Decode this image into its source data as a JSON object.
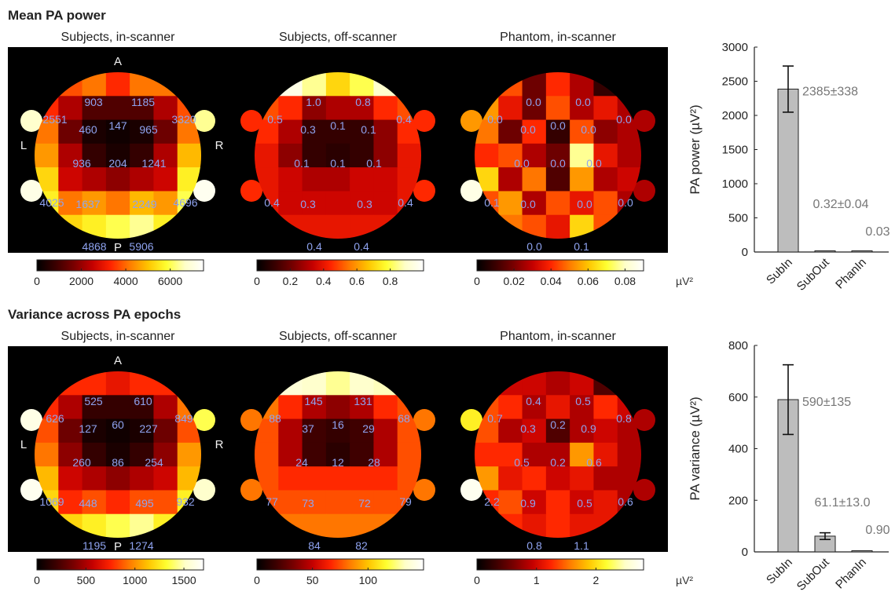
{
  "colormap": [
    "#000000",
    "#3a0000",
    "#7a0000",
    "#c40000",
    "#ff2400",
    "#ff7a00",
    "#ffc400",
    "#ffff30",
    "#ffffc8",
    "#ffffff"
  ],
  "orientation_labels": {
    "anterior": "A",
    "posterior": "P",
    "left": "L",
    "right": "R"
  },
  "unit_label": "µV²",
  "sections": [
    {
      "title": "Mean PA power",
      "panels": [
        {
          "title": "Subjects, in-scanner",
          "cmax": 7500,
          "show_orientation": true,
          "colorbar_ticks": [
            "0",
            "2000",
            "4000",
            "6000"
          ],
          "colorbar_tick_values": [
            0,
            2000,
            4000,
            6000
          ],
          "values": [
            "903",
            "1185",
            "2551",
            "460",
            "147",
            "965",
            "3320",
            "936",
            "204",
            "1241",
            "4025",
            "4696",
            "1637",
            "2249",
            "4868",
            "5906"
          ],
          "ear_levels": [
            0.9,
            0.85,
            0.95,
            0.97
          ],
          "cells": [
            [
              0.35,
              0.5,
              0.55,
              0.45,
              0.55,
              0.55,
              0.45
            ],
            [
              0.45,
              0.3,
              0.15,
              0.15,
              0.15,
              0.3,
              0.5
            ],
            [
              0.55,
              0.2,
              0.05,
              0.03,
              0.05,
              0.2,
              0.55
            ],
            [
              0.6,
              0.3,
              0.1,
              0.05,
              0.1,
              0.3,
              0.65
            ],
            [
              0.7,
              0.35,
              0.3,
              0.25,
              0.3,
              0.35,
              0.75
            ],
            [
              0.75,
              0.55,
              0.6,
              0.55,
              0.65,
              0.6,
              0.8
            ],
            [
              0.8,
              0.7,
              0.75,
              0.8,
              0.85,
              0.75,
              0.85
            ]
          ]
        },
        {
          "title": "Subjects, off-scanner",
          "cmax": 1.0,
          "show_orientation": false,
          "colorbar_ticks": [
            "0",
            "0.2",
            "0.4",
            "0.6",
            "0.8"
          ],
          "colorbar_tick_values": [
            0,
            0.2,
            0.4,
            0.6,
            0.8
          ],
          "values": [
            "1.0",
            "0.8",
            "0.5",
            "0.3",
            "0.1",
            "0.1",
            "0.4",
            "0.1",
            "0.1",
            "0.1",
            "0.4",
            "0.4",
            "0.3",
            "0.3",
            "0.4",
            "0.4"
          ],
          "ear_levels": [
            0.45,
            0.45,
            0.45,
            0.45
          ],
          "cells": [
            [
              0.85,
              0.95,
              0.85,
              0.7,
              0.8,
              0.9,
              0.75
            ],
            [
              0.5,
              0.45,
              0.25,
              0.3,
              0.3,
              0.45,
              0.5
            ],
            [
              0.45,
              0.3,
              0.1,
              0.1,
              0.1,
              0.25,
              0.45
            ],
            [
              0.4,
              0.25,
              0.1,
              0.08,
              0.1,
              0.25,
              0.4
            ],
            [
              0.4,
              0.35,
              0.3,
              0.3,
              0.35,
              0.35,
              0.4
            ],
            [
              0.4,
              0.35,
              0.35,
              0.35,
              0.35,
              0.35,
              0.4
            ],
            [
              0.4,
              0.4,
              0.4,
              0.4,
              0.4,
              0.4,
              0.4
            ]
          ]
        },
        {
          "title": "Phantom, in-scanner",
          "cmax": 0.09,
          "show_orientation": false,
          "colorbar_ticks": [
            "0",
            "0.02",
            "0.04",
            "0.06",
            "0.08"
          ],
          "colorbar_tick_values": [
            0,
            0.02,
            0.04,
            0.06,
            0.08
          ],
          "values": [
            "0.0",
            "0.0",
            "0.0",
            "0.0",
            "0.0",
            "0.0",
            "0.0",
            "0.0",
            "0.0",
            "0.0",
            "0.1",
            "0.0",
            "0.0",
            "0.0",
            "0.0",
            "0.1"
          ],
          "ear_levels": [
            0.6,
            0.3,
            0.95,
            0.3
          ],
          "cells": [
            [
              0.3,
              0.5,
              0.2,
              0.45,
              0.3,
              0.1,
              0.3
            ],
            [
              0.6,
              0.4,
              0.2,
              0.5,
              0.3,
              0.4,
              0.3
            ],
            [
              0.55,
              0.2,
              0.45,
              0.1,
              0.5,
              0.25,
              0.3
            ],
            [
              0.45,
              0.5,
              0.3,
              0.2,
              0.85,
              0.4,
              0.3
            ],
            [
              0.7,
              0.3,
              0.55,
              0.15,
              0.6,
              0.3,
              0.35
            ],
            [
              0.5,
              0.6,
              0.3,
              0.5,
              0.4,
              0.5,
              0.3
            ],
            [
              0.6,
              0.55,
              0.5,
              0.4,
              0.7,
              0.5,
              0.4
            ]
          ]
        }
      ]
    },
    {
      "title": "Variance across PA epochs",
      "panels": [
        {
          "title": "Subjects, in-scanner",
          "cmax": 1700,
          "show_orientation": true,
          "colorbar_ticks": [
            "0",
            "500",
            "1000",
            "1500"
          ],
          "colorbar_tick_values": [
            0,
            500,
            1000,
            1500
          ],
          "values": [
            "525",
            "610",
            "626",
            "127",
            "60",
            "227",
            "849",
            "260",
            "86",
            "254",
            "1069",
            "932",
            "448",
            "495",
            "1195",
            "1274"
          ],
          "ear_levels": [
            0.95,
            0.8,
            0.97,
            0.9
          ],
          "cells": [
            [
              0.35,
              0.45,
              0.45,
              0.4,
              0.45,
              0.45,
              0.35
            ],
            [
              0.45,
              0.3,
              0.1,
              0.1,
              0.1,
              0.3,
              0.55
            ],
            [
              0.5,
              0.2,
              0.05,
              0.03,
              0.05,
              0.2,
              0.5
            ],
            [
              0.55,
              0.25,
              0.1,
              0.05,
              0.1,
              0.25,
              0.6
            ],
            [
              0.65,
              0.35,
              0.3,
              0.25,
              0.3,
              0.35,
              0.65
            ],
            [
              0.7,
              0.45,
              0.5,
              0.45,
              0.5,
              0.5,
              0.75
            ],
            [
              0.75,
              0.7,
              0.75,
              0.8,
              0.85,
              0.75,
              0.8
            ]
          ]
        },
        {
          "title": "Subjects, off-scanner",
          "cmax": 150,
          "show_orientation": false,
          "colorbar_ticks": [
            "0",
            "50",
            "100"
          ],
          "colorbar_tick_values": [
            0,
            50,
            100
          ],
          "values": [
            "145",
            "131",
            "88",
            "37",
            "16",
            "29",
            "68",
            "24",
            "12",
            "28",
            "77",
            "79",
            "73",
            "72",
            "84",
            "82"
          ],
          "ear_levels": [
            0.55,
            0.55,
            0.55,
            0.55
          ],
          "cells": [
            [
              0.8,
              0.92,
              0.9,
              0.85,
              0.9,
              0.88,
              0.75
            ],
            [
              0.55,
              0.45,
              0.3,
              0.25,
              0.3,
              0.45,
              0.5
            ],
            [
              0.5,
              0.3,
              0.12,
              0.1,
              0.12,
              0.3,
              0.5
            ],
            [
              0.5,
              0.3,
              0.12,
              0.08,
              0.12,
              0.3,
              0.5
            ],
            [
              0.5,
              0.45,
              0.45,
              0.45,
              0.45,
              0.45,
              0.5
            ],
            [
              0.5,
              0.5,
              0.5,
              0.5,
              0.5,
              0.5,
              0.5
            ],
            [
              0.55,
              0.55,
              0.55,
              0.55,
              0.55,
              0.55,
              0.55
            ]
          ]
        },
        {
          "title": "Phantom, in-scanner",
          "cmax": 2.8,
          "show_orientation": false,
          "colorbar_ticks": [
            "0",
            "1",
            "2"
          ],
          "colorbar_tick_values": [
            0,
            1,
            2
          ],
          "values": [
            "0.4",
            "0.5",
            "0.7",
            "0.3",
            "0.2",
            "0.9",
            "0.8",
            "0.5",
            "0.2",
            "0.6",
            "2.2",
            "0.6",
            "0.9",
            "0.5",
            "0.8",
            "1.1"
          ],
          "ear_levels": [
            0.75,
            0.3,
            0.97,
            0.3
          ],
          "cells": [
            [
              0.4,
              0.35,
              0.35,
              0.3,
              0.35,
              0.15,
              0.3
            ],
            [
              0.5,
              0.45,
              0.3,
              0.4,
              0.3,
              0.45,
              0.35
            ],
            [
              0.5,
              0.3,
              0.35,
              0.15,
              0.3,
              0.35,
              0.3
            ],
            [
              0.45,
              0.45,
              0.3,
              0.3,
              0.6,
              0.4,
              0.3
            ],
            [
              0.6,
              0.4,
              0.45,
              0.35,
              0.4,
              0.3,
              0.3
            ],
            [
              0.45,
              0.5,
              0.35,
              0.45,
              0.35,
              0.4,
              0.3
            ],
            [
              0.4,
              0.45,
              0.4,
              0.45,
              0.4,
              0.4,
              0.35
            ]
          ]
        }
      ]
    }
  ],
  "chart_data": [
    {
      "type": "bar",
      "title": "",
      "ylabel": "PA power (µV²)",
      "ylim": [
        0,
        3000
      ],
      "yticks": [
        "0",
        "500",
        "1000",
        "1500",
        "2000",
        "2500",
        "3000"
      ],
      "ytick_values": [
        0,
        500,
        1000,
        1500,
        2000,
        2500,
        3000
      ],
      "categories": [
        "SubIn",
        "SubOut",
        "PhanIn"
      ],
      "values": [
        2385,
        0.32,
        0.03
      ],
      "errors": [
        338,
        0.04,
        null
      ],
      "labels": [
        "2385±338",
        "0.32±0.04",
        "0.03"
      ]
    },
    {
      "type": "bar",
      "title": "",
      "ylabel": "PA variance (µV²)",
      "ylim": [
        0,
        800
      ],
      "yticks": [
        "0",
        "200",
        "400",
        "600",
        "800"
      ],
      "ytick_values": [
        0,
        200,
        400,
        600,
        800
      ],
      "categories": [
        "SubIn",
        "SubOut",
        "PhanIn"
      ],
      "values": [
        590,
        61.1,
        0.9
      ],
      "errors": [
        135,
        13.0,
        null
      ],
      "labels": [
        "590±135",
        "61.1±13.0",
        "0.90"
      ]
    }
  ]
}
